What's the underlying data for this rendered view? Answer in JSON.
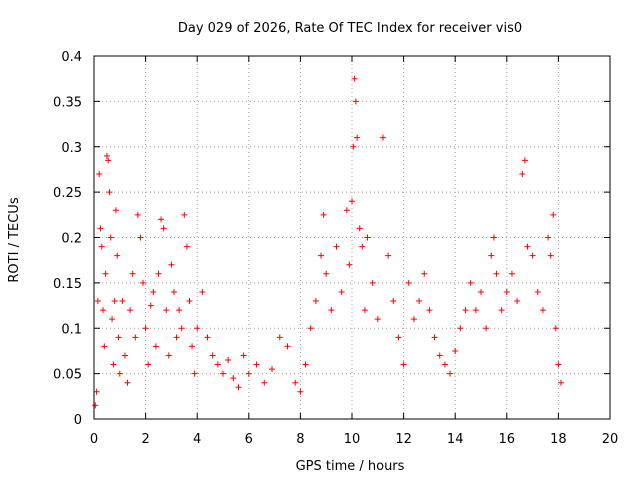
{
  "chart_data": {
    "type": "scatter",
    "title": "Day 029 of 2026, Rate Of TEC Index for receiver vis0",
    "xlabel": "GPS time / hours",
    "ylabel": "ROTI / TECUs",
    "xlim": [
      0,
      20
    ],
    "ylim": [
      0,
      0.4
    ],
    "x_ticks": [
      0,
      2,
      4,
      6,
      8,
      10,
      12,
      14,
      16,
      18,
      20
    ],
    "y_ticks": [
      0,
      0.05,
      0.1,
      0.15,
      0.2,
      0.25,
      0.3,
      0.35,
      0.4
    ],
    "x_tick_labels": [
      "0",
      "2",
      "4",
      "6",
      "8",
      "10",
      "12",
      "14",
      "16",
      "18",
      "20"
    ],
    "y_tick_labels": [
      "0",
      "0.05",
      "0.1",
      "0.15",
      "0.2",
      "0.25",
      "0.3",
      "0.35",
      "0.4"
    ],
    "grid": true,
    "marker": "+",
    "marker_color": "#ff0000",
    "series": [
      {
        "name": "ROTI",
        "points": [
          [
            0.05,
            0.015
          ],
          [
            0.1,
            0.03
          ],
          [
            0.15,
            0.13
          ],
          [
            0.2,
            0.27
          ],
          [
            0.25,
            0.21
          ],
          [
            0.3,
            0.19
          ],
          [
            0.35,
            0.12
          ],
          [
            0.4,
            0.08
          ],
          [
            0.45,
            0.16
          ],
          [
            0.5,
            0.29
          ],
          [
            0.55,
            0.285
          ],
          [
            0.6,
            0.25
          ],
          [
            0.65,
            0.2
          ],
          [
            0.7,
            0.11
          ],
          [
            0.75,
            0.06
          ],
          [
            0.8,
            0.13
          ],
          [
            0.85,
            0.23
          ],
          [
            0.9,
            0.18
          ],
          [
            0.95,
            0.09
          ],
          [
            1.0,
            0.05
          ],
          [
            1.1,
            0.13
          ],
          [
            1.2,
            0.07
          ],
          [
            1.3,
            0.04
          ],
          [
            1.4,
            0.12
          ],
          [
            1.5,
            0.16
          ],
          [
            1.6,
            0.09
          ],
          [
            1.7,
            0.225
          ],
          [
            1.8,
            0.2
          ],
          [
            1.9,
            0.15
          ],
          [
            2.0,
            0.1
          ],
          [
            2.1,
            0.06
          ],
          [
            2.2,
            0.125
          ],
          [
            2.3,
            0.14
          ],
          [
            2.4,
            0.08
          ],
          [
            2.5,
            0.16
          ],
          [
            2.6,
            0.22
          ],
          [
            2.7,
            0.21
          ],
          [
            2.8,
            0.12
          ],
          [
            2.9,
            0.07
          ],
          [
            3.0,
            0.17
          ],
          [
            3.1,
            0.14
          ],
          [
            3.2,
            0.09
          ],
          [
            3.3,
            0.12
          ],
          [
            3.4,
            0.1
          ],
          [
            3.5,
            0.225
          ],
          [
            3.6,
            0.19
          ],
          [
            3.7,
            0.13
          ],
          [
            3.8,
            0.08
          ],
          [
            3.9,
            0.05
          ],
          [
            4.0,
            0.1
          ],
          [
            4.2,
            0.14
          ],
          [
            4.4,
            0.09
          ],
          [
            4.6,
            0.07
          ],
          [
            4.8,
            0.06
          ],
          [
            5.0,
            0.05
          ],
          [
            5.2,
            0.065
          ],
          [
            5.4,
            0.045
          ],
          [
            5.6,
            0.035
          ],
          [
            5.8,
            0.07
          ],
          [
            6.0,
            0.05
          ],
          [
            6.3,
            0.06
          ],
          [
            6.6,
            0.04
          ],
          [
            6.9,
            0.055
          ],
          [
            7.2,
            0.09
          ],
          [
            7.5,
            0.08
          ],
          [
            7.8,
            0.04
          ],
          [
            8.0,
            0.03
          ],
          [
            8.2,
            0.06
          ],
          [
            8.4,
            0.1
          ],
          [
            8.6,
            0.13
          ],
          [
            8.8,
            0.18
          ],
          [
            8.9,
            0.225
          ],
          [
            9.0,
            0.16
          ],
          [
            9.2,
            0.12
          ],
          [
            9.4,
            0.19
          ],
          [
            9.6,
            0.14
          ],
          [
            9.8,
            0.23
          ],
          [
            9.9,
            0.17
          ],
          [
            10.0,
            0.24
          ],
          [
            10.05,
            0.3
          ],
          [
            10.1,
            0.375
          ],
          [
            10.15,
            0.35
          ],
          [
            10.2,
            0.31
          ],
          [
            10.3,
            0.21
          ],
          [
            10.4,
            0.19
          ],
          [
            10.5,
            0.12
          ],
          [
            10.6,
            0.2
          ],
          [
            10.8,
            0.15
          ],
          [
            11.0,
            0.11
          ],
          [
            11.2,
            0.31
          ],
          [
            11.4,
            0.18
          ],
          [
            11.6,
            0.13
          ],
          [
            11.8,
            0.09
          ],
          [
            12.0,
            0.06
          ],
          [
            12.2,
            0.15
          ],
          [
            12.4,
            0.11
          ],
          [
            12.6,
            0.13
          ],
          [
            12.8,
            0.16
          ],
          [
            13.0,
            0.12
          ],
          [
            13.2,
            0.09
          ],
          [
            13.4,
            0.07
          ],
          [
            13.6,
            0.06
          ],
          [
            13.8,
            0.05
          ],
          [
            14.0,
            0.075
          ],
          [
            14.2,
            0.1
          ],
          [
            14.4,
            0.12
          ],
          [
            14.6,
            0.15
          ],
          [
            14.8,
            0.12
          ],
          [
            15.0,
            0.14
          ],
          [
            15.2,
            0.1
          ],
          [
            15.4,
            0.18
          ],
          [
            15.5,
            0.2
          ],
          [
            15.6,
            0.16
          ],
          [
            15.8,
            0.12
          ],
          [
            16.0,
            0.14
          ],
          [
            16.2,
            0.16
          ],
          [
            16.4,
            0.13
          ],
          [
            16.6,
            0.27
          ],
          [
            16.7,
            0.285
          ],
          [
            16.8,
            0.19
          ],
          [
            17.0,
            0.18
          ],
          [
            17.2,
            0.14
          ],
          [
            17.4,
            0.12
          ],
          [
            17.6,
            0.2
          ],
          [
            17.7,
            0.18
          ],
          [
            17.8,
            0.225
          ],
          [
            17.9,
            0.1
          ],
          [
            18.0,
            0.06
          ],
          [
            18.1,
            0.04
          ]
        ]
      }
    ]
  }
}
